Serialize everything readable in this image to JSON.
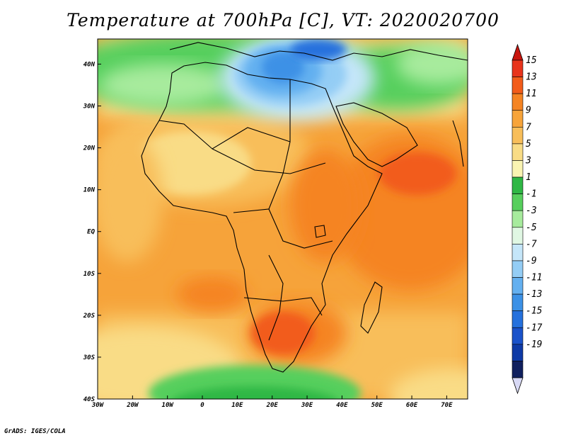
{
  "title": "Temperature at 700hPa [C], VT: 2020020700",
  "credit": "GrADS: IGES/COLA",
  "map": {
    "lon_range": [
      -30,
      76
    ],
    "lat_range": [
      -40,
      46
    ],
    "x_ticks": [
      "30W",
      "20W",
      "10W",
      "0",
      "10E",
      "20E",
      "30E",
      "40E",
      "50E",
      "60E",
      "70E"
    ],
    "y_ticks": [
      "40N",
      "30N",
      "20N",
      "10N",
      "EQ",
      "10S",
      "20S",
      "30S",
      "40S"
    ]
  },
  "colorbar": {
    "labels": [
      "15",
      "13",
      "11",
      "9",
      "7",
      "5",
      "3",
      "1",
      "-1",
      "-3",
      "-5",
      "-7",
      "-9",
      "-11",
      "-13",
      "-15",
      "-17",
      "-19"
    ],
    "colors": [
      "#e8341c",
      "#f25c1a",
      "#f58423",
      "#f7a43a",
      "#f8be5a",
      "#f9dc86",
      "#faf4b2",
      "#2fb745",
      "#57cf5d",
      "#a7eb9d",
      "#e0f7e3",
      "#c5e6f9",
      "#94cdf5",
      "#64b0f0",
      "#3c91e6",
      "#2571dd",
      "#1a52ca",
      "#0e3aa6",
      "#10205e"
    ],
    "over_color": "#c8150e",
    "under_color": "#d8d9f5"
  }
}
